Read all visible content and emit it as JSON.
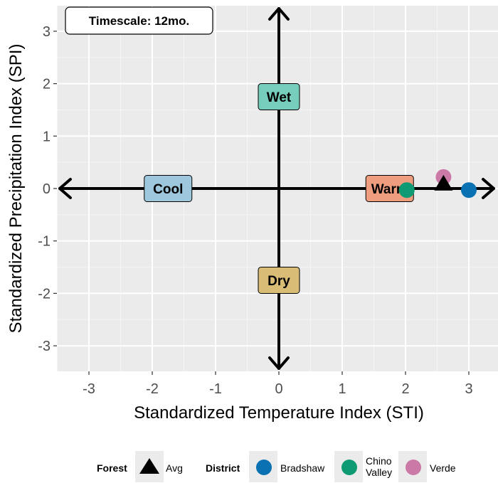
{
  "chart_data": {
    "type": "scatter",
    "xlabel": "Standardized Temperature Index (STI)",
    "ylabel": "Standardized Precipitation Index (SPI)",
    "xlim": [
      -3.5,
      3.45
    ],
    "ylim": [
      -3.5,
      3.5
    ],
    "x_ticks": [
      "-3",
      "-2",
      "-1",
      "0",
      "1",
      "2",
      "3"
    ],
    "y_ticks": [
      "3",
      "2",
      "1",
      "0",
      "-1",
      "-2",
      "-3"
    ],
    "grid": true,
    "annotation": "Timescale:  12mo.",
    "quadrant_labels": [
      {
        "label": "Wet",
        "x": 0,
        "y": 1.75,
        "color": "#76cdbb"
      },
      {
        "label": "Dry",
        "x": 0,
        "y": -1.75,
        "color": "#d9bd77"
      },
      {
        "label": "Cool",
        "x": -1.75,
        "y": 0,
        "color": "#9dc7dc"
      },
      {
        "label": "Warm",
        "x": 1.75,
        "y": 0,
        "color": "#ee9e7f"
      }
    ],
    "series": [
      {
        "group": "Forest",
        "name": "Avg",
        "shape": "triangle",
        "color": "#000000",
        "points": [
          {
            "x": 2.6,
            "y": 0.07
          }
        ]
      },
      {
        "group": "District",
        "name": "Bradshaw",
        "shape": "circle",
        "color": "#0a72b3",
        "points": [
          {
            "x": 3.0,
            "y": -0.03
          }
        ]
      },
      {
        "group": "District",
        "name": "Chino Valley",
        "shape": "circle",
        "color": "#0e9b73",
        "points": [
          {
            "x": 2.02,
            "y": -0.03
          }
        ]
      },
      {
        "group": "District",
        "name": "Verde",
        "shape": "circle",
        "color": "#cb7aa8",
        "points": [
          {
            "x": 2.6,
            "y": 0.22
          }
        ]
      }
    ],
    "legend": {
      "position": "bottom",
      "groups": [
        {
          "title": "Forest",
          "items": [
            "Avg"
          ]
        },
        {
          "title": "District",
          "items": [
            "Bradshaw",
            "Chino\nValley",
            "Verde"
          ]
        }
      ]
    }
  }
}
